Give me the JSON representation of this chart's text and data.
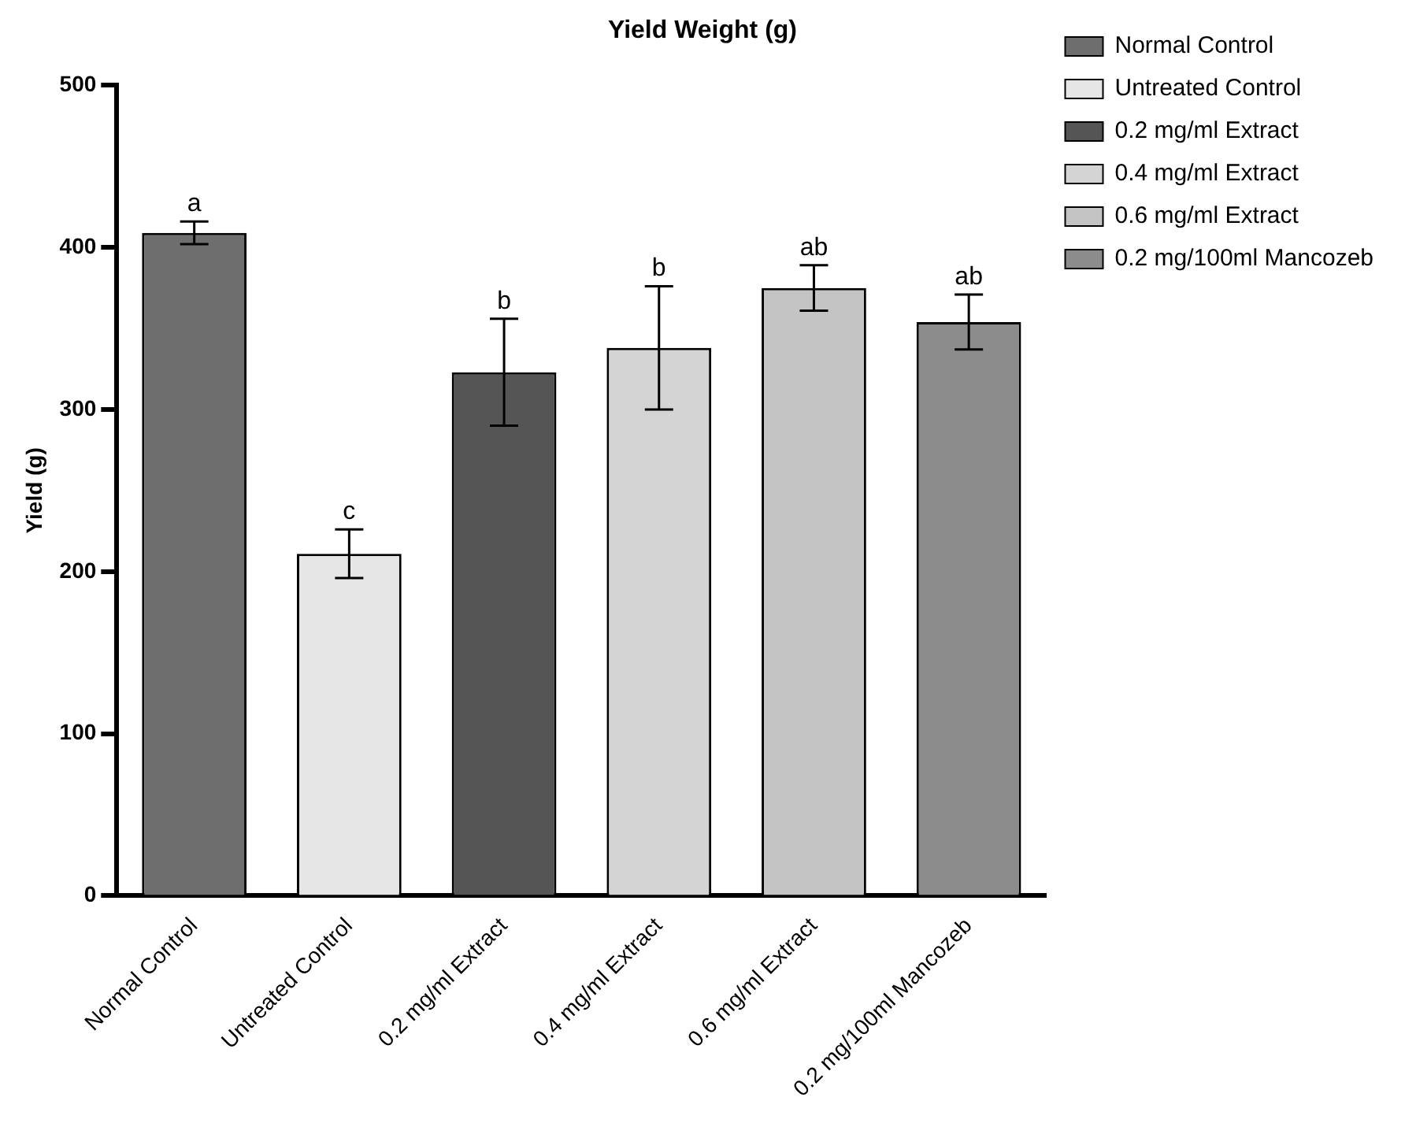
{
  "chart_data": {
    "type": "bar",
    "title": "Yield Weight (g)",
    "ylabel": "Yield (g)",
    "categories": [
      "Normal Control",
      "Untreated Control",
      "0.2 mg/ml Extract",
      "0.4 mg/ml Extract",
      "0.6 mg/ml Extract",
      "0.2 mg/100ml Mancozeb"
    ],
    "series": [
      {
        "name": "Normal Control",
        "color": "#6e6e6e",
        "values": [
          409,
          null,
          null,
          null,
          null,
          null
        ],
        "errors": [
          7,
          null,
          null,
          null,
          null,
          null
        ]
      },
      {
        "name": "Untreated Control",
        "color": "#e6e6e6",
        "values": [
          null,
          211,
          null,
          null,
          null,
          null
        ],
        "errors": [
          null,
          15,
          null,
          null,
          null,
          null
        ]
      },
      {
        "name": "0.2 mg/ml Extract",
        "color": "#555555",
        "values": [
          null,
          null,
          323,
          null,
          null,
          null
        ],
        "errors": [
          null,
          null,
          33,
          null,
          null,
          null
        ]
      },
      {
        "name": "0.4 mg/ml Extract",
        "color": "#d4d4d4",
        "values": [
          null,
          null,
          null,
          338,
          null,
          null
        ],
        "errors": [
          null,
          null,
          null,
          38,
          null,
          null
        ]
      },
      {
        "name": "0.6 mg/ml Extract",
        "color": "#c4c4c4",
        "values": [
          null,
          null,
          null,
          null,
          375,
          null
        ],
        "errors": [
          null,
          null,
          null,
          null,
          14,
          null
        ]
      },
      {
        "name": "0.2 mg/100ml Mancozeb",
        "color": "#8c8c8c",
        "values": [
          null,
          null,
          null,
          null,
          null,
          354
        ],
        "errors": [
          null,
          null,
          null,
          null,
          null,
          17
        ]
      }
    ],
    "ylim": [
      0,
      500
    ],
    "yticks": [
      0,
      100,
      200,
      300,
      400,
      500
    ],
    "grid": false,
    "legend": "right",
    "annotations": [
      {
        "text": "a",
        "x": "Normal Control",
        "y": 416
      },
      {
        "text": "c",
        "x": "Untreated Control",
        "y": 226
      },
      {
        "text": "b",
        "x": "0.2 mg/ml Extract",
        "y": 356
      },
      {
        "text": "b",
        "x": "0.4 mg/ml Extract",
        "y": 376
      },
      {
        "text": "ab",
        "x": "0.6 mg/ml Extract",
        "y": 389
      },
      {
        "text": "ab",
        "x": "0.2 mg/100ml Mancozeb",
        "y": 371
      }
    ]
  }
}
